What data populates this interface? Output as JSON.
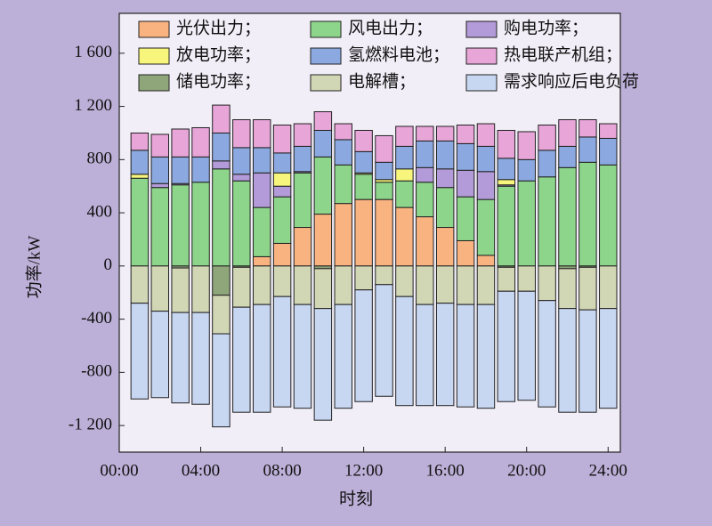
{
  "chart_data": {
    "type": "stacked_bar",
    "x": [
      1,
      2,
      3,
      4,
      5,
      6,
      7,
      8,
      9,
      10,
      11,
      12,
      13,
      14,
      15,
      16,
      17,
      18,
      19,
      20,
      21,
      22,
      23,
      24
    ],
    "xlim": [
      0,
      24.6
    ],
    "xticks": [
      {
        "value": 0,
        "label": "00:00"
      },
      {
        "value": 4,
        "label": "04:00"
      },
      {
        "value": 8,
        "label": "08:00"
      },
      {
        "value": 12,
        "label": "12:00"
      },
      {
        "value": 16,
        "label": "16:00"
      },
      {
        "value": 20,
        "label": "20:00"
      },
      {
        "value": 24,
        "label": "24:00"
      }
    ],
    "ylim": [
      -1400,
      1900
    ],
    "yticks": [
      {
        "value": -1200,
        "label": "-1 200"
      },
      -800,
      -400,
      0,
      400,
      800,
      {
        "value": 1200,
        "label": "1 200"
      },
      {
        "value": 1600,
        "label": "1 600"
      }
    ],
    "x_label": "时刻",
    "y_label": "功率/kW",
    "series": [
      {
        "name": "光伏出力；",
        "color": "#f9b381",
        "values": [
          0,
          0,
          0,
          0,
          0,
          0,
          70,
          170,
          290,
          390,
          470,
          500,
          500,
          440,
          370,
          290,
          190,
          80,
          0,
          0,
          0,
          0,
          0,
          0
        ]
      },
      {
        "name": "风电出力；",
        "color": "#8dd58a",
        "values": [
          660,
          590,
          610,
          630,
          730,
          640,
          370,
          350,
          410,
          430,
          290,
          190,
          130,
          200,
          260,
          300,
          330,
          420,
          600,
          640,
          670,
          740,
          780,
          760
        ]
      },
      {
        "name": "购电功率；",
        "color": "#b39ad8",
        "values": [
          0,
          30,
          10,
          0,
          60,
          50,
          260,
          80,
          10,
          0,
          0,
          0,
          0,
          0,
          110,
          140,
          200,
          210,
          10,
          0,
          0,
          0,
          0,
          0
        ]
      },
      {
        "name": "放电功率；",
        "color": "#f7f57c",
        "values": [
          30,
          0,
          0,
          0,
          0,
          0,
          0,
          100,
          0,
          0,
          0,
          10,
          20,
          90,
          0,
          0,
          0,
          0,
          40,
          0,
          0,
          0,
          0,
          0
        ]
      },
      {
        "name": "氢燃料电池；",
        "color": "#8ba9e0",
        "values": [
          180,
          200,
          200,
          190,
          210,
          200,
          190,
          150,
          190,
          200,
          190,
          160,
          130,
          170,
          200,
          210,
          200,
          190,
          160,
          160,
          200,
          160,
          190,
          200
        ]
      },
      {
        "name": "热电联产机组；",
        "color": "#e8a5d8",
        "values": [
          130,
          170,
          210,
          220,
          210,
          210,
          210,
          210,
          170,
          140,
          120,
          160,
          200,
          150,
          110,
          110,
          140,
          170,
          210,
          210,
          190,
          200,
          130,
          110
        ]
      },
      {
        "name": "储电功率；",
        "color": "#8fa57a",
        "values": [
          0,
          0,
          -15,
          0,
          -220,
          -10,
          0,
          0,
          0,
          -20,
          0,
          0,
          0,
          0,
          0,
          0,
          0,
          0,
          -10,
          0,
          0,
          -20,
          -10,
          0
        ]
      },
      {
        "name": "电解槽；",
        "color": "#d1d6b5",
        "values": [
          -280,
          -340,
          -335,
          -350,
          -290,
          -300,
          -290,
          -230,
          -290,
          -300,
          -290,
          -180,
          -140,
          -230,
          -290,
          -280,
          -290,
          -290,
          -180,
          -190,
          -260,
          -300,
          -320,
          -320
        ]
      },
      {
        "name": "需求响应后电负荷",
        "color": "#c7d6f1",
        "values": [
          -720,
          -650,
          -680,
          -690,
          -700,
          -790,
          -810,
          -830,
          -780,
          -840,
          -780,
          -840,
          -840,
          -820,
          -760,
          -770,
          -770,
          -780,
          -830,
          -820,
          -800,
          -780,
          -770,
          -750
        ]
      }
    ]
  }
}
